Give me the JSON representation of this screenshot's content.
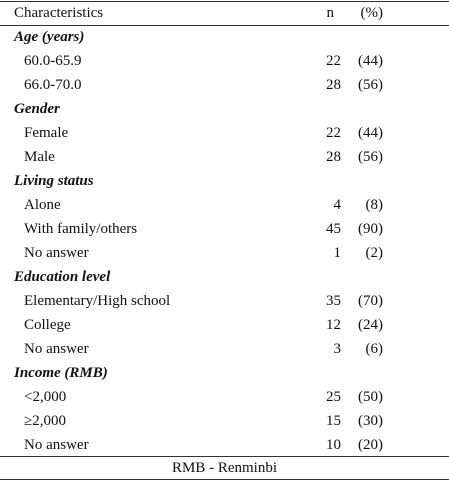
{
  "table": {
    "header": [
      "Characteristics",
      "n",
      "(%)"
    ],
    "sections": [
      {
        "title": "Age (years)",
        "rows": [
          [
            "60.0-65.9",
            22,
            "(44)"
          ],
          [
            "66.0-70.0",
            28,
            "(56)"
          ]
        ]
      },
      {
        "title": "Gender",
        "rows": [
          [
            "Female",
            22,
            "(44)"
          ],
          [
            "Male",
            28,
            "(56)"
          ]
        ]
      },
      {
        "title": "Living status",
        "rows": [
          [
            "Alone",
            4,
            "(8)"
          ],
          [
            "With family/others",
            45,
            "(90)"
          ],
          [
            "No answer",
            1,
            "(2)"
          ]
        ]
      },
      {
        "title": "Education level",
        "rows": [
          [
            "Elementary/High school",
            35,
            "(70)"
          ],
          [
            "College",
            12,
            "(24)"
          ],
          [
            "No answer",
            3,
            "(6)"
          ]
        ]
      },
      {
        "title": "Income (RMB)",
        "rows": [
          [
            "<2,000",
            25,
            "(50)"
          ],
          [
            "≥2,000",
            15,
            "(30)"
          ],
          [
            "No answer",
            10,
            "(20)"
          ]
        ]
      }
    ],
    "footnote": "RMB  - Renminbi"
  }
}
